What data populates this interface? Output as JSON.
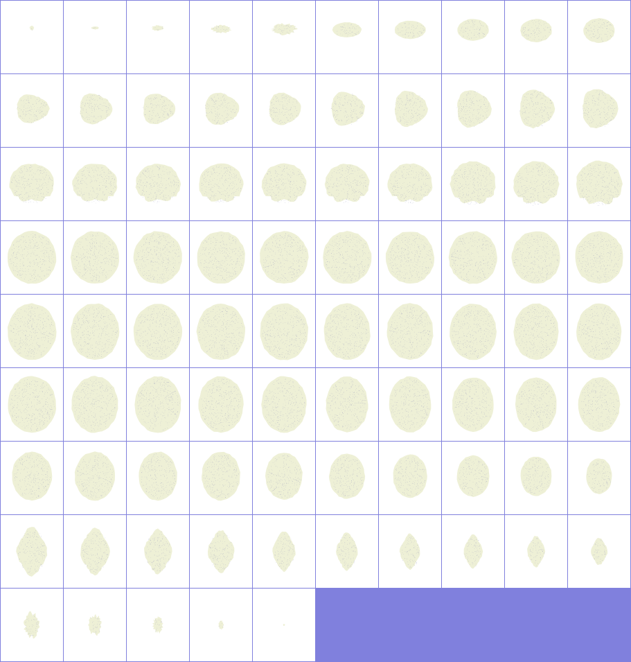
{
  "grid": {
    "columns": 10,
    "rows": 9,
    "slice_count": 85
  },
  "colors": {
    "grid_line": "#8080dd",
    "tile_background": "#ffffff",
    "tissue": "#eef0d6",
    "speckle": "#8a8ab8",
    "empty_area": "#8080dd"
  },
  "slices": [
    {
      "index": 1,
      "size": 0.08,
      "w": 0.9,
      "h": 0.8,
      "dy": -0.25,
      "shape": "blob"
    },
    {
      "index": 2,
      "size": 0.08,
      "w": 1.6,
      "h": 0.5,
      "dy": -0.25,
      "shape": "blob"
    },
    {
      "index": 3,
      "size": 0.12,
      "w": 1.6,
      "h": 0.6,
      "dy": -0.25,
      "shape": "blob"
    },
    {
      "index": 4,
      "size": 0.18,
      "w": 1.8,
      "h": 0.6,
      "dy": -0.22,
      "shape": "blob"
    },
    {
      "index": 5,
      "size": 0.22,
      "w": 1.8,
      "h": 0.7,
      "dy": -0.22,
      "shape": "blob"
    },
    {
      "index": 6,
      "size": 0.26,
      "w": 1.8,
      "h": 0.8,
      "dy": -0.2,
      "shape": "oval"
    },
    {
      "index": 7,
      "size": 0.28,
      "w": 1.8,
      "h": 0.9,
      "dy": -0.2,
      "shape": "oval"
    },
    {
      "index": 8,
      "size": 0.3,
      "w": 1.7,
      "h": 1.0,
      "dy": -0.2,
      "shape": "oval"
    },
    {
      "index": 9,
      "size": 0.32,
      "w": 1.6,
      "h": 1.0,
      "dy": -0.18,
      "shape": "oval"
    },
    {
      "index": 10,
      "size": 0.34,
      "w": 1.5,
      "h": 1.0,
      "dy": -0.18,
      "shape": "oval"
    },
    {
      "index": 11,
      "size": 0.34,
      "w": 1.6,
      "h": 1.2,
      "dy": -0.05,
      "shape": "lobed"
    },
    {
      "index": 12,
      "size": 0.36,
      "w": 1.5,
      "h": 1.2,
      "dy": -0.05,
      "shape": "lobed"
    },
    {
      "index": 13,
      "size": 0.36,
      "w": 1.5,
      "h": 1.2,
      "dy": -0.05,
      "shape": "lobed"
    },
    {
      "index": 14,
      "size": 0.38,
      "w": 1.5,
      "h": 1.2,
      "dy": -0.05,
      "shape": "lobed"
    },
    {
      "index": 15,
      "size": 0.38,
      "w": 1.4,
      "h": 1.2,
      "dy": -0.05,
      "shape": "lobed"
    },
    {
      "index": 16,
      "size": 0.4,
      "w": 1.4,
      "h": 1.2,
      "dy": -0.05,
      "shape": "lobed"
    },
    {
      "index": 17,
      "size": 0.42,
      "w": 1.3,
      "h": 1.2,
      "dy": -0.05,
      "shape": "lobed"
    },
    {
      "index": 18,
      "size": 0.44,
      "w": 1.3,
      "h": 1.2,
      "dy": -0.05,
      "shape": "lobed"
    },
    {
      "index": 19,
      "size": 0.45,
      "w": 1.3,
      "h": 1.2,
      "dy": -0.05,
      "shape": "lobed"
    },
    {
      "index": 20,
      "size": 0.46,
      "w": 1.3,
      "h": 1.2,
      "dy": -0.05,
      "shape": "lobed"
    },
    {
      "index": 21,
      "size": 0.52,
      "w": 1.4,
      "h": 1.1,
      "dy": 0.0,
      "shape": "front"
    },
    {
      "index": 22,
      "size": 0.52,
      "w": 1.4,
      "h": 1.1,
      "dy": 0.0,
      "shape": "front"
    },
    {
      "index": 23,
      "size": 0.52,
      "w": 1.4,
      "h": 1.1,
      "dy": 0.0,
      "shape": "front"
    },
    {
      "index": 24,
      "size": 0.52,
      "w": 1.4,
      "h": 1.1,
      "dy": 0.0,
      "shape": "front"
    },
    {
      "index": 25,
      "size": 0.52,
      "w": 1.4,
      "h": 1.1,
      "dy": 0.0,
      "shape": "front"
    },
    {
      "index": 26,
      "size": 0.52,
      "w": 1.4,
      "h": 1.1,
      "dy": 0.0,
      "shape": "front"
    },
    {
      "index": 27,
      "size": 0.52,
      "w": 1.4,
      "h": 1.1,
      "dy": 0.0,
      "shape": "front"
    },
    {
      "index": 28,
      "size": 0.53,
      "w": 1.4,
      "h": 1.2,
      "dy": 0.0,
      "shape": "front"
    },
    {
      "index": 29,
      "size": 0.53,
      "w": 1.4,
      "h": 1.2,
      "dy": 0.0,
      "shape": "front"
    },
    {
      "index": 30,
      "size": 0.54,
      "w": 1.4,
      "h": 1.2,
      "dy": 0.0,
      "shape": "front"
    },
    {
      "index": 31,
      "size": 0.56,
      "w": 1.4,
      "h": 1.3,
      "dy": 0.0,
      "shape": "wide"
    },
    {
      "index": 32,
      "size": 0.56,
      "w": 1.4,
      "h": 1.3,
      "dy": 0.0,
      "shape": "wide"
    },
    {
      "index": 33,
      "size": 0.56,
      "w": 1.4,
      "h": 1.3,
      "dy": 0.0,
      "shape": "wide"
    },
    {
      "index": 34,
      "size": 0.56,
      "w": 1.4,
      "h": 1.3,
      "dy": 0.0,
      "shape": "wide"
    },
    {
      "index": 35,
      "size": 0.56,
      "w": 1.4,
      "h": 1.3,
      "dy": 0.0,
      "shape": "wide"
    },
    {
      "index": 36,
      "size": 0.56,
      "w": 1.4,
      "h": 1.3,
      "dy": 0.0,
      "shape": "wide"
    },
    {
      "index": 37,
      "size": 0.56,
      "w": 1.4,
      "h": 1.3,
      "dy": 0.0,
      "shape": "wide"
    },
    {
      "index": 38,
      "size": 0.56,
      "w": 1.4,
      "h": 1.3,
      "dy": 0.0,
      "shape": "wide"
    },
    {
      "index": 39,
      "size": 0.56,
      "w": 1.4,
      "h": 1.3,
      "dy": 0.0,
      "shape": "wide"
    },
    {
      "index": 40,
      "size": 0.56,
      "w": 1.4,
      "h": 1.3,
      "dy": 0.0,
      "shape": "wide"
    },
    {
      "index": 41,
      "size": 0.58,
      "w": 1.35,
      "h": 1.35,
      "dy": 0.02,
      "shape": "round"
    },
    {
      "index": 42,
      "size": 0.58,
      "w": 1.35,
      "h": 1.35,
      "dy": 0.02,
      "shape": "round"
    },
    {
      "index": 43,
      "size": 0.58,
      "w": 1.35,
      "h": 1.35,
      "dy": 0.02,
      "shape": "round"
    },
    {
      "index": 44,
      "size": 0.58,
      "w": 1.35,
      "h": 1.35,
      "dy": 0.02,
      "shape": "round"
    },
    {
      "index": 45,
      "size": 0.58,
      "w": 1.35,
      "h": 1.35,
      "dy": 0.02,
      "shape": "round"
    },
    {
      "index": 46,
      "size": 0.58,
      "w": 1.3,
      "h": 1.35,
      "dy": 0.02,
      "shape": "round"
    },
    {
      "index": 47,
      "size": 0.58,
      "w": 1.3,
      "h": 1.35,
      "dy": 0.02,
      "shape": "round"
    },
    {
      "index": 48,
      "size": 0.58,
      "w": 1.3,
      "h": 1.35,
      "dy": 0.02,
      "shape": "round"
    },
    {
      "index": 49,
      "size": 0.58,
      "w": 1.25,
      "h": 1.35,
      "dy": 0.02,
      "shape": "round"
    },
    {
      "index": 50,
      "size": 0.58,
      "w": 1.25,
      "h": 1.35,
      "dy": 0.02,
      "shape": "round"
    },
    {
      "index": 51,
      "size": 0.58,
      "w": 1.35,
      "h": 1.35,
      "dy": 0.0,
      "shape": "round"
    },
    {
      "index": 52,
      "size": 0.58,
      "w": 1.3,
      "h": 1.35,
      "dy": 0.0,
      "shape": "round"
    },
    {
      "index": 53,
      "size": 0.58,
      "w": 1.3,
      "h": 1.35,
      "dy": 0.0,
      "shape": "round"
    },
    {
      "index": 54,
      "size": 0.58,
      "w": 1.25,
      "h": 1.35,
      "dy": 0.0,
      "shape": "round"
    },
    {
      "index": 55,
      "size": 0.58,
      "w": 1.25,
      "h": 1.35,
      "dy": 0.0,
      "shape": "round"
    },
    {
      "index": 56,
      "size": 0.57,
      "w": 1.2,
      "h": 1.35,
      "dy": 0.0,
      "shape": "round"
    },
    {
      "index": 57,
      "size": 0.57,
      "w": 1.2,
      "h": 1.35,
      "dy": 0.0,
      "shape": "round"
    },
    {
      "index": 58,
      "size": 0.56,
      "w": 1.2,
      "h": 1.35,
      "dy": 0.0,
      "shape": "round"
    },
    {
      "index": 59,
      "size": 0.56,
      "w": 1.2,
      "h": 1.35,
      "dy": 0.0,
      "shape": "round"
    },
    {
      "index": 60,
      "size": 0.56,
      "w": 1.2,
      "h": 1.35,
      "dy": 0.0,
      "shape": "round"
    },
    {
      "index": 61,
      "size": 0.52,
      "w": 1.25,
      "h": 1.3,
      "dy": -0.05,
      "shape": "round"
    },
    {
      "index": 62,
      "size": 0.52,
      "w": 1.25,
      "h": 1.3,
      "dy": -0.05,
      "shape": "round"
    },
    {
      "index": 63,
      "size": 0.52,
      "w": 1.2,
      "h": 1.3,
      "dy": -0.05,
      "shape": "round"
    },
    {
      "index": 64,
      "size": 0.52,
      "w": 1.2,
      "h": 1.3,
      "dy": -0.05,
      "shape": "round"
    },
    {
      "index": 65,
      "size": 0.5,
      "w": 1.2,
      "h": 1.3,
      "dy": -0.05,
      "shape": "round"
    },
    {
      "index": 66,
      "size": 0.48,
      "w": 1.2,
      "h": 1.3,
      "dy": -0.05,
      "shape": "round"
    },
    {
      "index": 67,
      "size": 0.46,
      "w": 1.2,
      "h": 1.3,
      "dy": -0.05,
      "shape": "round"
    },
    {
      "index": 68,
      "size": 0.44,
      "w": 1.2,
      "h": 1.3,
      "dy": -0.05,
      "shape": "round"
    },
    {
      "index": 69,
      "size": 0.42,
      "w": 1.2,
      "h": 1.3,
      "dy": -0.05,
      "shape": "round"
    },
    {
      "index": 70,
      "size": 0.38,
      "w": 1.1,
      "h": 1.3,
      "dy": -0.05,
      "shape": "round"
    },
    {
      "index": 71,
      "size": 0.44,
      "w": 1.1,
      "h": 1.5,
      "dy": 0.0,
      "shape": "narrow"
    },
    {
      "index": 72,
      "size": 0.42,
      "w": 1.1,
      "h": 1.5,
      "dy": 0.0,
      "shape": "narrow"
    },
    {
      "index": 73,
      "size": 0.4,
      "w": 1.1,
      "h": 1.5,
      "dy": 0.0,
      "shape": "narrow"
    },
    {
      "index": 74,
      "size": 0.38,
      "w": 1.1,
      "h": 1.5,
      "dy": 0.0,
      "shape": "narrow"
    },
    {
      "index": 75,
      "size": 0.36,
      "w": 1.0,
      "h": 1.5,
      "dy": 0.0,
      "shape": "narrow"
    },
    {
      "index": 76,
      "size": 0.34,
      "w": 1.0,
      "h": 1.5,
      "dy": 0.0,
      "shape": "narrow"
    },
    {
      "index": 77,
      "size": 0.32,
      "w": 1.0,
      "h": 1.5,
      "dy": 0.0,
      "shape": "narrow"
    },
    {
      "index": 78,
      "size": 0.3,
      "w": 1.0,
      "h": 1.5,
      "dy": 0.0,
      "shape": "narrow"
    },
    {
      "index": 79,
      "size": 0.28,
      "w": 1.0,
      "h": 1.5,
      "dy": 0.0,
      "shape": "narrow"
    },
    {
      "index": 80,
      "size": 0.26,
      "w": 1.0,
      "h": 1.4,
      "dy": 0.0,
      "shape": "narrow"
    },
    {
      "index": 81,
      "size": 0.24,
      "w": 1.0,
      "h": 1.4,
      "dy": 0.0,
      "shape": "blob"
    },
    {
      "index": 82,
      "size": 0.2,
      "w": 1.0,
      "h": 1.4,
      "dy": 0.0,
      "shape": "blob"
    },
    {
      "index": 83,
      "size": 0.16,
      "w": 1.0,
      "h": 1.4,
      "dy": 0.0,
      "shape": "blob"
    },
    {
      "index": 84,
      "size": 0.08,
      "w": 1.0,
      "h": 1.6,
      "dy": 0.0,
      "shape": "blob"
    },
    {
      "index": 85,
      "size": 0.03,
      "w": 1.0,
      "h": 1.0,
      "dy": 0.0,
      "shape": "blob"
    }
  ]
}
